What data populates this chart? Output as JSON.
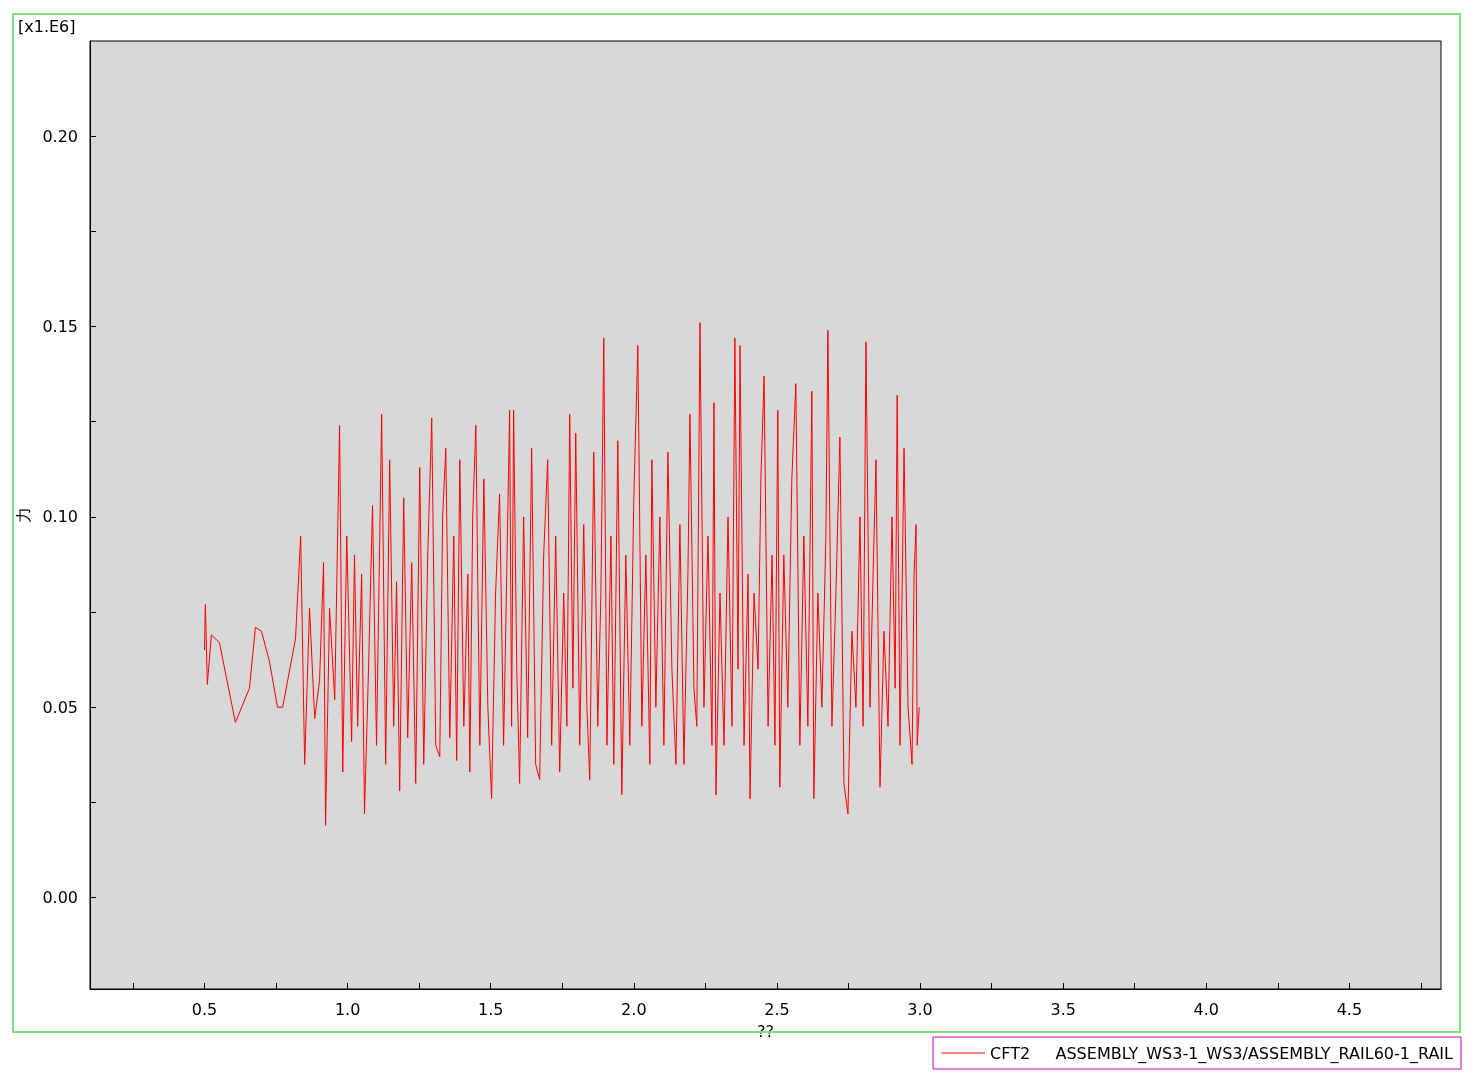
{
  "chart_data": {
    "type": "line",
    "xlabel": "??",
    "ylabel": "力",
    "annotations": [
      "[x1.E6]"
    ],
    "xlim": [
      0.1,
      4.82
    ],
    "ylim": [
      -0.024,
      0.225
    ],
    "xticks": [
      {
        "value": 0.25,
        "label": null
      },
      0.5,
      {
        "value": 0.75,
        "label": null
      },
      {
        "value": 1,
        "label": "1.0"
      },
      {
        "value": 1.25,
        "label": null
      },
      1.5,
      {
        "value": 1.75,
        "label": null
      },
      {
        "value": 2,
        "label": "2.0"
      },
      {
        "value": 2.25,
        "label": null
      },
      2.5,
      {
        "value": 2.75,
        "label": null
      },
      {
        "value": 3,
        "label": "3.0"
      },
      {
        "value": 3.25,
        "label": null
      },
      3.5,
      {
        "value": 3.75,
        "label": null
      },
      {
        "value": 4,
        "label": "4.0"
      },
      {
        "value": 4.25,
        "label": null
      },
      4.5,
      {
        "value": 4.75,
        "label": null
      }
    ],
    "yticks": [
      {
        "value": 0,
        "label": "0.00"
      },
      {
        "value": 0.025,
        "label": null
      },
      0.05,
      {
        "value": 0.075,
        "label": null
      },
      {
        "value": 0.1,
        "label": "0.10"
      },
      {
        "value": 0.125,
        "label": null
      },
      0.15,
      {
        "value": 0.175,
        "label": null
      },
      {
        "value": 0.2,
        "label": "0.20"
      }
    ],
    "grid": false,
    "legend": "bottom right",
    "marker": "none",
    "line_style": "solid",
    "series": [
      {
        "name": "CFT2     ASSEMBLY_WS3-1_WS3/ASSEMBLY_RAIL60-1_RAIL",
        "color": "#ff0000",
        "x": [
          0.5,
          0.503,
          0.51,
          0.524,
          0.552,
          0.608,
          0.657,
          0.678,
          0.699,
          0.727,
          0.755,
          0.773,
          0.818,
          0.836,
          0.85,
          0.867,
          0.885,
          0.902,
          0.916,
          0.923,
          0.937,
          0.955,
          0.972,
          0.983,
          0.997,
          1.014,
          1.024,
          1.035,
          1.049,
          1.059,
          1.073,
          1.087,
          1.101,
          1.119,
          1.133,
          1.147,
          1.161,
          1.171,
          1.182,
          1.196,
          1.21,
          1.224,
          1.238,
          1.252,
          1.266,
          1.28,
          1.294,
          1.308,
          1.322,
          1.332,
          1.343,
          1.357,
          1.371,
          1.381,
          1.392,
          1.406,
          1.42,
          1.427,
          1.437,
          1.448,
          1.462,
          1.476,
          1.49,
          1.503,
          1.517,
          1.531,
          1.545,
          1.556,
          1.566,
          1.573,
          1.58,
          1.591,
          1.601,
          1.615,
          1.629,
          1.643,
          1.657,
          1.671,
          1.685,
          1.699,
          1.713,
          1.727,
          1.741,
          1.755,
          1.766,
          1.776,
          1.787,
          1.797,
          1.811,
          1.825,
          1.836,
          1.846,
          1.86,
          1.874,
          1.885,
          1.895,
          1.906,
          1.92,
          1.93,
          1.944,
          1.958,
          1.972,
          1.986,
          2.0,
          2.014,
          2.028,
          2.042,
          2.056,
          2.063,
          2.077,
          2.091,
          2.105,
          2.119,
          2.133,
          2.147,
          2.161,
          2.175,
          2.189,
          2.196,
          2.21,
          2.22,
          2.231,
          2.245,
          2.259,
          2.273,
          2.28,
          2.287,
          2.301,
          2.315,
          2.329,
          2.343,
          2.353,
          2.364,
          2.371,
          2.385,
          2.399,
          2.406,
          2.42,
          2.434,
          2.444,
          2.455,
          2.469,
          2.483,
          2.493,
          2.503,
          2.51,
          2.524,
          2.538,
          2.552,
          2.566,
          2.58,
          2.594,
          2.608,
          2.622,
          2.629,
          2.643,
          2.657,
          2.671,
          2.678,
          2.692,
          2.706,
          2.72,
          2.734,
          2.748,
          2.762,
          2.776,
          2.79,
          2.801,
          2.811,
          2.825,
          2.836,
          2.846,
          2.86,
          2.874,
          2.888,
          2.902,
          2.913,
          2.92,
          2.93,
          2.944,
          2.958,
          2.972,
          2.979,
          2.986,
          2.99,
          2.997
        ],
        "values": [
          0.065,
          0.077,
          0.056,
          0.069,
          0.067,
          0.046,
          0.055,
          0.071,
          0.07,
          0.062,
          0.05,
          0.05,
          0.068,
          0.095,
          0.035,
          0.076,
          0.047,
          0.057,
          0.088,
          0.019,
          0.076,
          0.052,
          0.124,
          0.033,
          0.095,
          0.041,
          0.09,
          0.045,
          0.085,
          0.022,
          0.06,
          0.103,
          0.04,
          0.127,
          0.035,
          0.115,
          0.045,
          0.083,
          0.028,
          0.105,
          0.042,
          0.088,
          0.03,
          0.113,
          0.035,
          0.09,
          0.126,
          0.04,
          0.037,
          0.1,
          0.118,
          0.042,
          0.095,
          0.036,
          0.115,
          0.045,
          0.085,
          0.033,
          0.1,
          0.124,
          0.04,
          0.11,
          0.05,
          0.026,
          0.08,
          0.106,
          0.04,
          0.085,
          0.128,
          0.045,
          0.128,
          0.06,
          0.03,
          0.1,
          0.042,
          0.118,
          0.035,
          0.031,
          0.09,
          0.115,
          0.04,
          0.095,
          0.033,
          0.08,
          0.045,
          0.127,
          0.055,
          0.122,
          0.04,
          0.098,
          0.05,
          0.031,
          0.117,
          0.045,
          0.08,
          0.147,
          0.04,
          0.095,
          0.035,
          0.12,
          0.027,
          0.09,
          0.04,
          0.105,
          0.145,
          0.045,
          0.09,
          0.035,
          0.115,
          0.05,
          0.1,
          0.04,
          0.117,
          0.06,
          0.035,
          0.098,
          0.035,
          0.085,
          0.127,
          0.055,
          0.045,
          0.151,
          0.05,
          0.095,
          0.04,
          0.13,
          0.027,
          0.08,
          0.04,
          0.1,
          0.045,
          0.147,
          0.06,
          0.145,
          0.04,
          0.085,
          0.026,
          0.08,
          0.06,
          0.11,
          0.137,
          0.045,
          0.09,
          0.04,
          0.128,
          0.029,
          0.09,
          0.05,
          0.11,
          0.135,
          0.04,
          0.095,
          0.045,
          0.133,
          0.026,
          0.08,
          0.05,
          0.095,
          0.149,
          0.045,
          0.08,
          0.121,
          0.03,
          0.022,
          0.07,
          0.05,
          0.1,
          0.045,
          0.146,
          0.05,
          0.085,
          0.115,
          0.029,
          0.07,
          0.045,
          0.1,
          0.055,
          0.132,
          0.04,
          0.118,
          0.05,
          0.035,
          0.085,
          0.098,
          0.04,
          0.05
        ]
      }
    ]
  }
}
